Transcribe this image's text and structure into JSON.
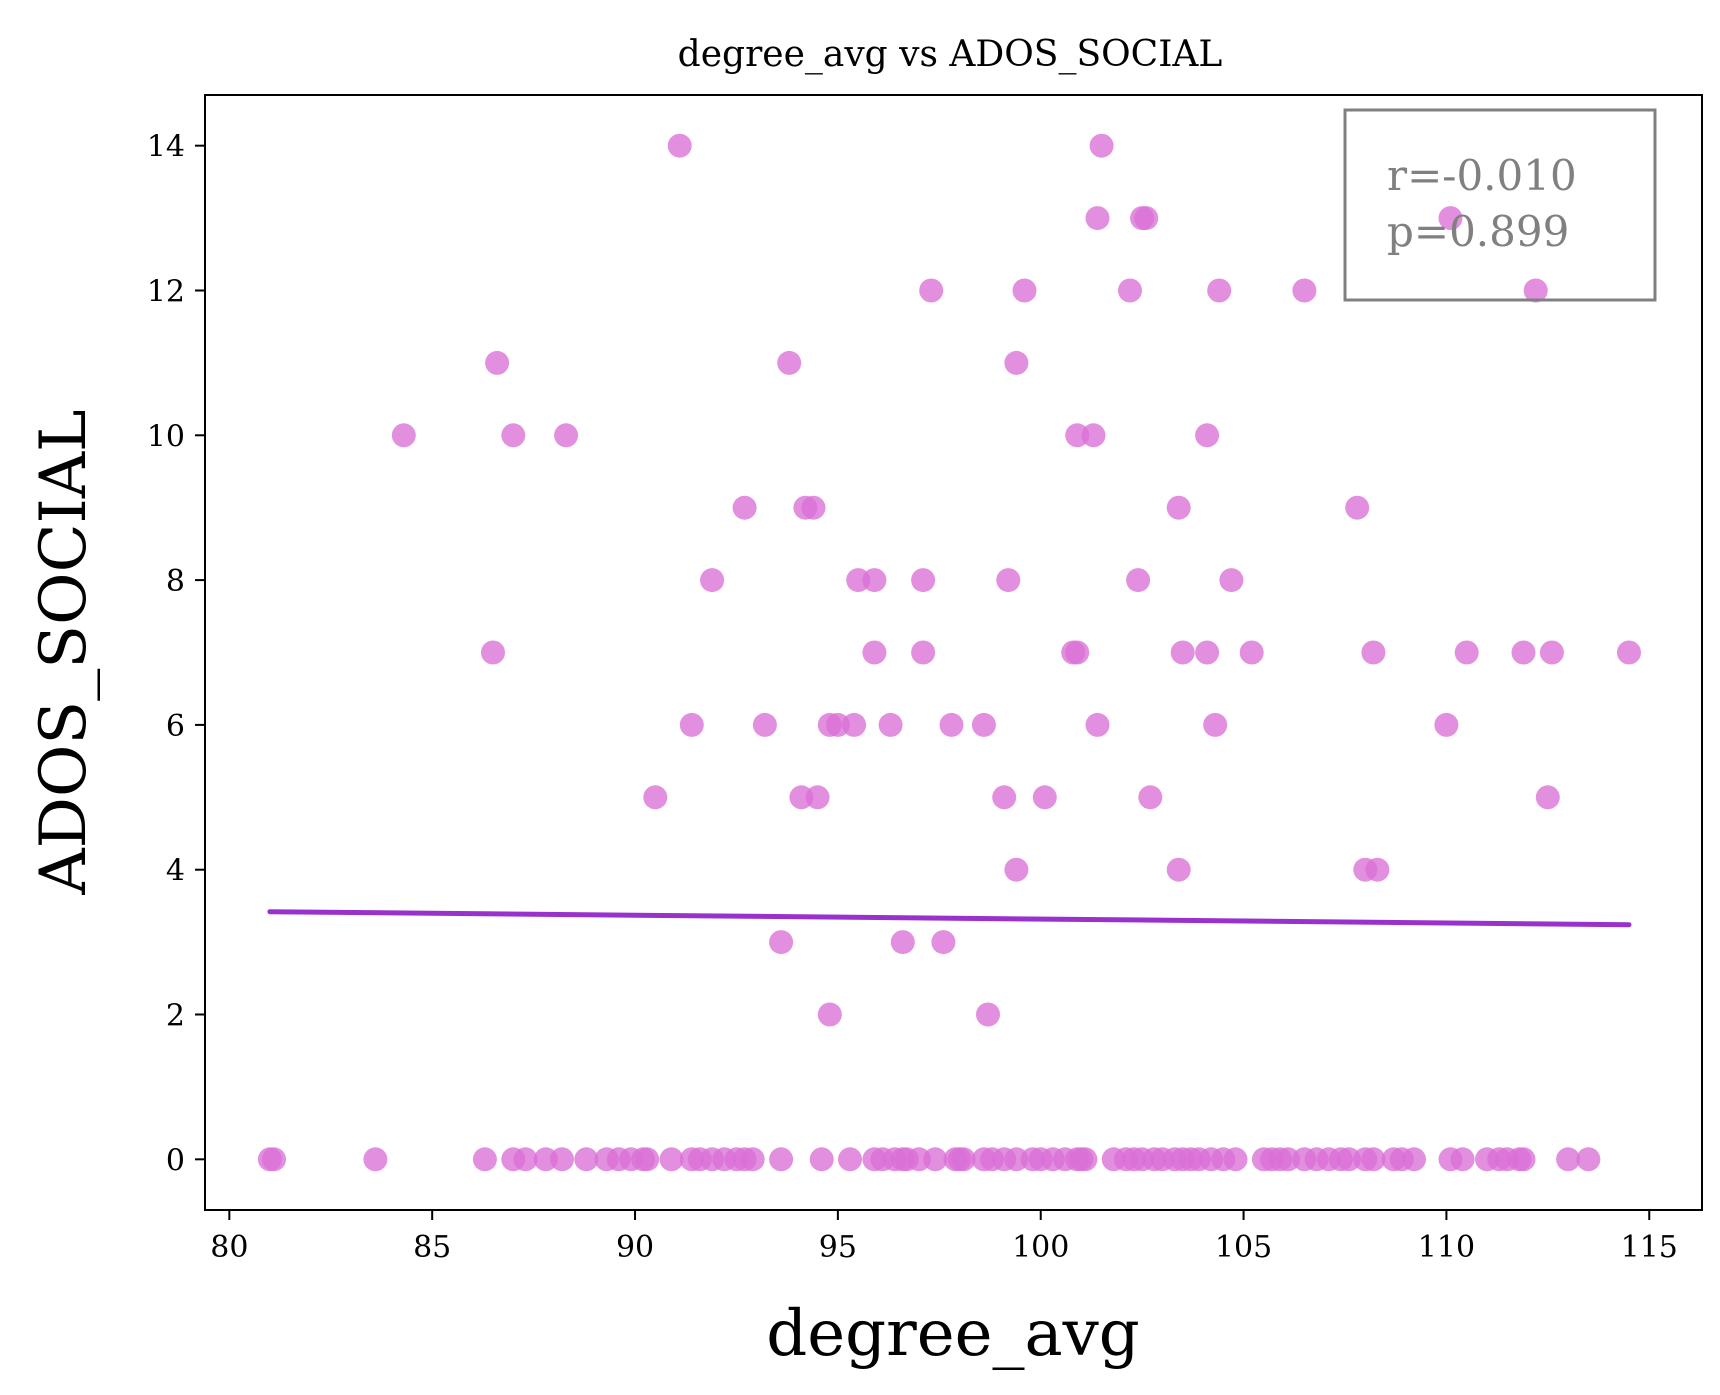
{
  "chart_data": {
    "type": "scatter",
    "title": "degree_avg vs ADOS_SOCIAL",
    "xlabel": "degree_avg",
    "ylabel": "ADOS_SOCIAL",
    "xlim": [
      79.4,
      116.3
    ],
    "ylim": [
      -0.7,
      14.7
    ],
    "xticks": [
      80,
      85,
      90,
      95,
      100,
      105,
      110,
      115
    ],
    "yticks": [
      0,
      2,
      4,
      6,
      8,
      10,
      12,
      14
    ],
    "grid": false,
    "point_color": "#DA70D6",
    "line_color": "#9932CC",
    "trend_line": {
      "x": [
        81.0,
        114.5
      ],
      "y": [
        3.42,
        3.24
      ]
    },
    "annotation": {
      "r": "r=-0.010",
      "p": "p=0.899",
      "location": "top-right",
      "color": "#808080"
    },
    "points": [
      {
        "x": 91.1,
        "y": 14
      },
      {
        "x": 101.5,
        "y": 14
      },
      {
        "x": 101.4,
        "y": 13
      },
      {
        "x": 102.5,
        "y": 13
      },
      {
        "x": 102.6,
        "y": 13
      },
      {
        "x": 110.1,
        "y": 13
      },
      {
        "x": 97.3,
        "y": 12
      },
      {
        "x": 99.6,
        "y": 12
      },
      {
        "x": 102.2,
        "y": 12
      },
      {
        "x": 104.4,
        "y": 12
      },
      {
        "x": 106.5,
        "y": 12
      },
      {
        "x": 112.2,
        "y": 12
      },
      {
        "x": 86.6,
        "y": 11
      },
      {
        "x": 93.8,
        "y": 11
      },
      {
        "x": 99.4,
        "y": 11
      },
      {
        "x": 84.3,
        "y": 10
      },
      {
        "x": 87.0,
        "y": 10
      },
      {
        "x": 88.3,
        "y": 10
      },
      {
        "x": 100.9,
        "y": 10
      },
      {
        "x": 101.3,
        "y": 10
      },
      {
        "x": 104.1,
        "y": 10
      },
      {
        "x": 92.7,
        "y": 9
      },
      {
        "x": 94.2,
        "y": 9
      },
      {
        "x": 94.4,
        "y": 9
      },
      {
        "x": 103.4,
        "y": 9
      },
      {
        "x": 107.8,
        "y": 9
      },
      {
        "x": 91.9,
        "y": 8
      },
      {
        "x": 95.5,
        "y": 8
      },
      {
        "x": 95.9,
        "y": 8
      },
      {
        "x": 97.1,
        "y": 8
      },
      {
        "x": 99.2,
        "y": 8
      },
      {
        "x": 102.4,
        "y": 8
      },
      {
        "x": 104.7,
        "y": 8
      },
      {
        "x": 86.5,
        "y": 7
      },
      {
        "x": 95.9,
        "y": 7
      },
      {
        "x": 97.1,
        "y": 7
      },
      {
        "x": 100.8,
        "y": 7
      },
      {
        "x": 100.9,
        "y": 7
      },
      {
        "x": 103.5,
        "y": 7
      },
      {
        "x": 104.1,
        "y": 7
      },
      {
        "x": 105.2,
        "y": 7
      },
      {
        "x": 108.2,
        "y": 7
      },
      {
        "x": 110.5,
        "y": 7
      },
      {
        "x": 111.9,
        "y": 7
      },
      {
        "x": 112.6,
        "y": 7
      },
      {
        "x": 114.5,
        "y": 7
      },
      {
        "x": 91.4,
        "y": 6
      },
      {
        "x": 93.2,
        "y": 6
      },
      {
        "x": 94.8,
        "y": 6
      },
      {
        "x": 95.0,
        "y": 6
      },
      {
        "x": 95.4,
        "y": 6
      },
      {
        "x": 96.3,
        "y": 6
      },
      {
        "x": 97.8,
        "y": 6
      },
      {
        "x": 98.6,
        "y": 6
      },
      {
        "x": 101.4,
        "y": 6
      },
      {
        "x": 104.3,
        "y": 6
      },
      {
        "x": 110.0,
        "y": 6
      },
      {
        "x": 90.5,
        "y": 5
      },
      {
        "x": 94.1,
        "y": 5
      },
      {
        "x": 94.5,
        "y": 5
      },
      {
        "x": 99.1,
        "y": 5
      },
      {
        "x": 100.1,
        "y": 5
      },
      {
        "x": 102.7,
        "y": 5
      },
      {
        "x": 112.5,
        "y": 5
      },
      {
        "x": 99.4,
        "y": 4
      },
      {
        "x": 103.4,
        "y": 4
      },
      {
        "x": 108.0,
        "y": 4
      },
      {
        "x": 108.3,
        "y": 4
      },
      {
        "x": 93.6,
        "y": 3
      },
      {
        "x": 96.6,
        "y": 3
      },
      {
        "x": 97.6,
        "y": 3
      },
      {
        "x": 94.8,
        "y": 2
      },
      {
        "x": 98.7,
        "y": 2
      },
      {
        "x": 81.0,
        "y": 0
      },
      {
        "x": 81.1,
        "y": 0
      },
      {
        "x": 83.6,
        "y": 0
      },
      {
        "x": 86.3,
        "y": 0
      },
      {
        "x": 87.0,
        "y": 0
      },
      {
        "x": 87.3,
        "y": 0
      },
      {
        "x": 87.8,
        "y": 0
      },
      {
        "x": 88.2,
        "y": 0
      },
      {
        "x": 88.8,
        "y": 0
      },
      {
        "x": 89.3,
        "y": 0
      },
      {
        "x": 89.6,
        "y": 0
      },
      {
        "x": 89.9,
        "y": 0
      },
      {
        "x": 90.2,
        "y": 0
      },
      {
        "x": 90.3,
        "y": 0
      },
      {
        "x": 90.9,
        "y": 0
      },
      {
        "x": 91.4,
        "y": 0
      },
      {
        "x": 91.6,
        "y": 0
      },
      {
        "x": 91.9,
        "y": 0
      },
      {
        "x": 92.2,
        "y": 0
      },
      {
        "x": 92.5,
        "y": 0
      },
      {
        "x": 92.7,
        "y": 0
      },
      {
        "x": 92.9,
        "y": 0
      },
      {
        "x": 93.6,
        "y": 0
      },
      {
        "x": 94.6,
        "y": 0
      },
      {
        "x": 95.3,
        "y": 0
      },
      {
        "x": 95.9,
        "y": 0
      },
      {
        "x": 96.1,
        "y": 0
      },
      {
        "x": 96.4,
        "y": 0
      },
      {
        "x": 96.6,
        "y": 0
      },
      {
        "x": 96.7,
        "y": 0
      },
      {
        "x": 97.0,
        "y": 0
      },
      {
        "x": 97.4,
        "y": 0
      },
      {
        "x": 97.9,
        "y": 0
      },
      {
        "x": 98.0,
        "y": 0
      },
      {
        "x": 98.1,
        "y": 0
      },
      {
        "x": 98.6,
        "y": 0
      },
      {
        "x": 98.8,
        "y": 0
      },
      {
        "x": 99.1,
        "y": 0
      },
      {
        "x": 99.4,
        "y": 0
      },
      {
        "x": 99.8,
        "y": 0
      },
      {
        "x": 100.0,
        "y": 0
      },
      {
        "x": 100.3,
        "y": 0
      },
      {
        "x": 100.6,
        "y": 0
      },
      {
        "x": 100.9,
        "y": 0
      },
      {
        "x": 101.0,
        "y": 0
      },
      {
        "x": 101.1,
        "y": 0
      },
      {
        "x": 101.8,
        "y": 0
      },
      {
        "x": 102.1,
        "y": 0
      },
      {
        "x": 102.3,
        "y": 0
      },
      {
        "x": 102.5,
        "y": 0
      },
      {
        "x": 102.8,
        "y": 0
      },
      {
        "x": 103.0,
        "y": 0
      },
      {
        "x": 103.3,
        "y": 0
      },
      {
        "x": 103.5,
        "y": 0
      },
      {
        "x": 103.7,
        "y": 0
      },
      {
        "x": 103.9,
        "y": 0
      },
      {
        "x": 104.2,
        "y": 0
      },
      {
        "x": 104.5,
        "y": 0
      },
      {
        "x": 104.8,
        "y": 0
      },
      {
        "x": 105.5,
        "y": 0
      },
      {
        "x": 105.7,
        "y": 0
      },
      {
        "x": 105.9,
        "y": 0
      },
      {
        "x": 106.1,
        "y": 0
      },
      {
        "x": 106.5,
        "y": 0
      },
      {
        "x": 106.8,
        "y": 0
      },
      {
        "x": 107.1,
        "y": 0
      },
      {
        "x": 107.4,
        "y": 0
      },
      {
        "x": 107.6,
        "y": 0
      },
      {
        "x": 108.0,
        "y": 0
      },
      {
        "x": 108.2,
        "y": 0
      },
      {
        "x": 108.7,
        "y": 0
      },
      {
        "x": 108.9,
        "y": 0
      },
      {
        "x": 109.2,
        "y": 0
      },
      {
        "x": 110.1,
        "y": 0
      },
      {
        "x": 110.4,
        "y": 0
      },
      {
        "x": 111.0,
        "y": 0
      },
      {
        "x": 111.3,
        "y": 0
      },
      {
        "x": 111.5,
        "y": 0
      },
      {
        "x": 111.8,
        "y": 0
      },
      {
        "x": 111.9,
        "y": 0
      },
      {
        "x": 113.0,
        "y": 0
      },
      {
        "x": 113.5,
        "y": 0
      }
    ]
  }
}
